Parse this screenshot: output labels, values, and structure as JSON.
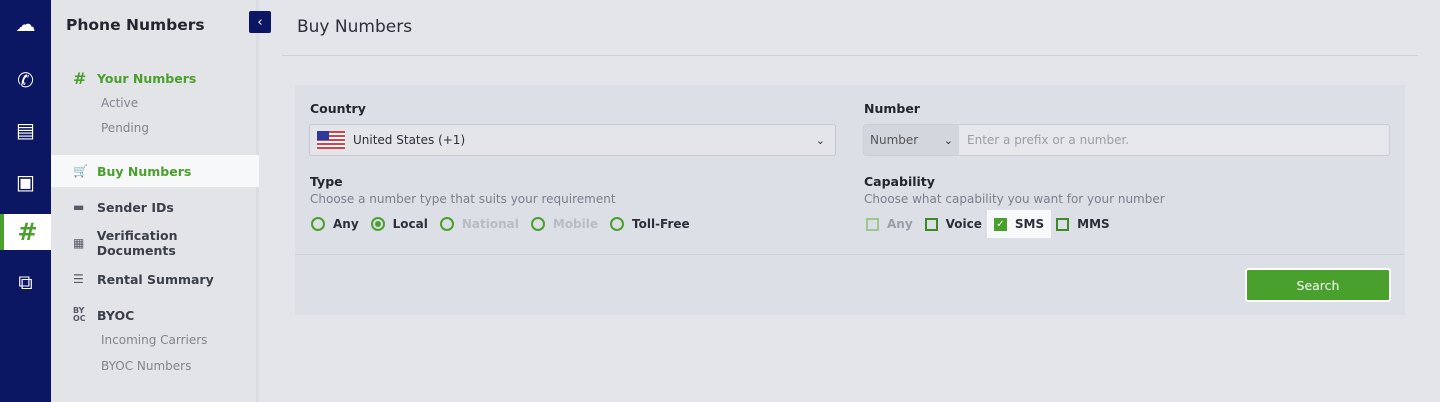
{
  "rail": {
    "items": [
      {
        "icon": "cloud-dialpad-icon"
      },
      {
        "icon": "phone-call-icon"
      },
      {
        "icon": "messages-icon"
      },
      {
        "icon": "sip-icon"
      },
      {
        "icon": "hash-icon",
        "active": true
      },
      {
        "icon": "flow-icon"
      }
    ]
  },
  "sidebar": {
    "title": "Phone Numbers",
    "collapse": "‹",
    "your_numbers": "Your Numbers",
    "active": "Active",
    "pending": "Pending",
    "buy_numbers": "Buy Numbers",
    "sender_ids": "Sender IDs",
    "verification": "Verification Documents",
    "rental": "Rental Summary",
    "byoc": "BYOC",
    "incoming": "Incoming Carriers",
    "byoc_numbers": "BYOC Numbers"
  },
  "main": {
    "title": "Buy Numbers",
    "country": {
      "label": "Country",
      "value": "United States (+1)"
    },
    "number": {
      "label": "Number",
      "mode": "Number",
      "placeholder": "Enter a prefix or a number."
    },
    "type": {
      "label": "Type",
      "hint": "Choose a number type that suits your requirement",
      "options": [
        "Any",
        "Local",
        "National",
        "Mobile",
        "Toll-Free"
      ],
      "selected": "Local",
      "disabled": [
        "National",
        "Mobile"
      ]
    },
    "capability": {
      "label": "Capability",
      "hint": "Choose what capability you want for your number",
      "options": [
        "Any",
        "Voice",
        "SMS",
        "MMS"
      ],
      "checked": [
        "SMS"
      ]
    },
    "search_label": "Search"
  },
  "colors": {
    "accent": "#4aa02c",
    "rail": "#0c1763"
  }
}
